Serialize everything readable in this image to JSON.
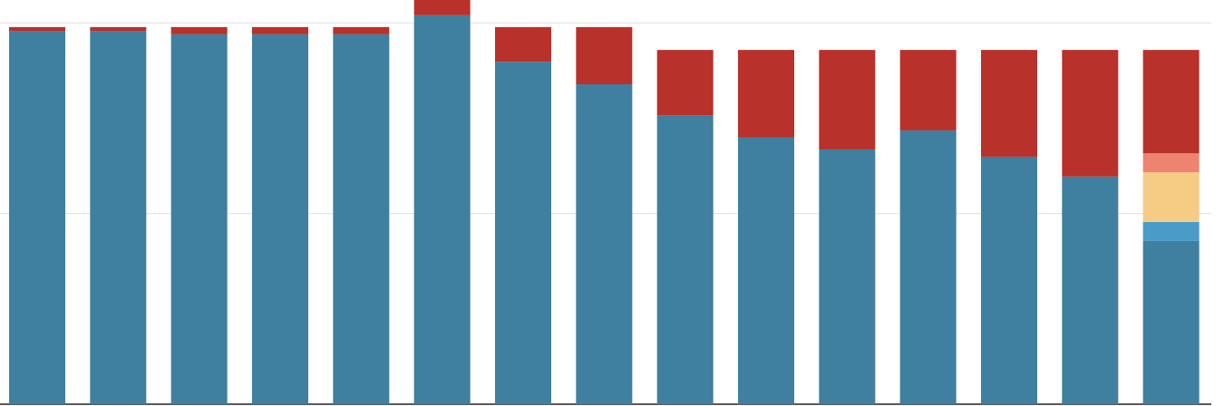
{
  "chart_data": {
    "type": "stacked-bar",
    "categories": [
      null,
      null,
      null,
      null,
      null,
      null,
      null,
      null,
      null,
      null,
      null,
      null,
      null,
      null,
      null
    ],
    "series": [
      {
        "color": "#3f7f9f",
        "values": [
          97.9,
          97.9,
          97.0,
          97.0,
          97.0,
          102.0,
          89.8,
          83.9,
          75.8,
          69.9,
          66.8,
          71.8,
          64.9,
          59.7,
          42.8
        ]
      },
      {
        "color": "#4a9bc8",
        "values": [
          null,
          null,
          null,
          null,
          null,
          null,
          null,
          null,
          null,
          null,
          null,
          null,
          null,
          null,
          5.0
        ]
      },
      {
        "color": "#f6cb84",
        "values": [
          null,
          null,
          null,
          null,
          null,
          null,
          null,
          null,
          null,
          null,
          null,
          null,
          null,
          null,
          13.0
        ]
      },
      {
        "color": "#ee8470",
        "values": [
          null,
          null,
          null,
          null,
          null,
          null,
          null,
          null,
          null,
          null,
          null,
          null,
          null,
          null,
          5.0
        ]
      },
      {
        "color": "#b8312a",
        "values": [
          1.0,
          1.0,
          1.9,
          1.9,
          1.9,
          4.0,
          9.1,
          15.0,
          17.1,
          23.0,
          26.1,
          21.1,
          28.0,
          33.2,
          27.1
        ]
      }
    ],
    "ylim": [
      0,
      106
    ],
    "yticks": [
      0,
      50,
      100
    ],
    "grid": true
  }
}
